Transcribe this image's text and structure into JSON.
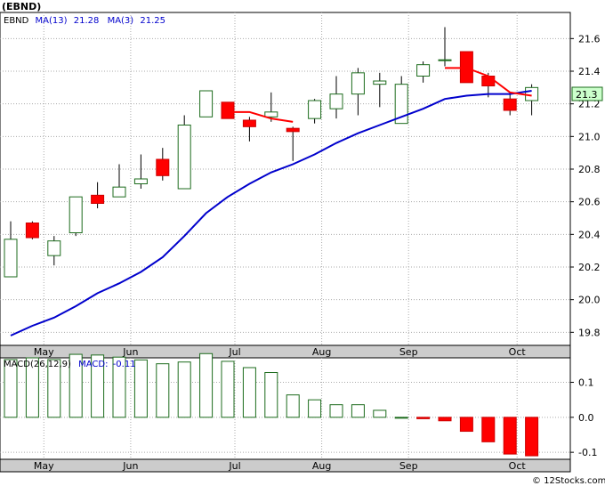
{
  "chart_data": [
    {
      "type": "candlestick",
      "title": "(EBND)",
      "legend": {
        "symbol": "EBND",
        "ma13_label": "MA(13)",
        "ma13_value": "21.28",
        "ma3_label": "MA(3)",
        "ma3_value": "21.25"
      },
      "last_price_label": "21.3",
      "ylim": [
        19.72,
        21.76
      ],
      "y_ticks": [
        "19.8",
        "20.0",
        "20.2",
        "20.4",
        "20.6",
        "20.8",
        "21.0",
        "21.2",
        "21.4",
        "21.6"
      ],
      "x_ticks": [
        "May",
        "Jun",
        "Jul",
        "Aug",
        "Sep",
        "Oct"
      ],
      "x_tick_weeks": [
        1.2,
        5.2,
        10,
        14,
        18,
        23
      ],
      "candles": [
        {
          "o": 20.14,
          "h": 20.48,
          "l": 20.14,
          "c": 20.37
        },
        {
          "o": 20.47,
          "h": 20.48,
          "l": 20.37,
          "c": 20.38
        },
        {
          "o": 20.27,
          "h": 20.39,
          "l": 20.21,
          "c": 20.36
        },
        {
          "o": 20.41,
          "h": 20.63,
          "l": 20.39,
          "c": 20.63
        },
        {
          "o": 20.64,
          "h": 20.72,
          "l": 20.56,
          "c": 20.59
        },
        {
          "o": 20.63,
          "h": 20.83,
          "l": 20.63,
          "c": 20.69
        },
        {
          "o": 20.71,
          "h": 20.89,
          "l": 20.68,
          "c": 20.74
        },
        {
          "o": 20.86,
          "h": 20.93,
          "l": 20.73,
          "c": 20.76
        },
        {
          "o": 20.68,
          "h": 21.13,
          "l": 20.68,
          "c": 21.07
        },
        {
          "o": 21.12,
          "h": 21.28,
          "l": 21.12,
          "c": 21.28
        },
        {
          "o": 21.21,
          "h": 21.21,
          "l": 21.11,
          "c": 21.11
        },
        {
          "o": 21.1,
          "h": 21.12,
          "l": 20.97,
          "c": 21.06
        },
        {
          "o": 21.12,
          "h": 21.27,
          "l": 21.09,
          "c": 21.15
        },
        {
          "o": 21.05,
          "h": 21.06,
          "l": 20.85,
          "c": 21.03
        },
        {
          "o": 21.11,
          "h": 21.23,
          "l": 21.08,
          "c": 21.22
        },
        {
          "o": 21.17,
          "h": 21.37,
          "l": 21.11,
          "c": 21.26
        },
        {
          "o": 21.26,
          "h": 21.42,
          "l": 21.13,
          "c": 21.39
        },
        {
          "o": 21.32,
          "h": 21.39,
          "l": 21.18,
          "c": 21.34
        },
        {
          "o": 21.08,
          "h": 21.37,
          "l": 21.08,
          "c": 21.32
        },
        {
          "o": 21.37,
          "h": 21.46,
          "l": 21.33,
          "c": 21.44
        },
        {
          "o": 21.47,
          "h": 21.67,
          "l": 21.43,
          "c": 21.47
        },
        {
          "o": 21.52,
          "h": 21.52,
          "l": 21.33,
          "c": 21.33
        },
        {
          "o": 21.37,
          "h": 21.39,
          "l": 21.24,
          "c": 21.31
        },
        {
          "o": 21.23,
          "h": 21.27,
          "l": 21.13,
          "c": 21.16
        },
        {
          "o": 21.22,
          "h": 21.32,
          "l": 21.13,
          "c": 21.3
        }
      ],
      "ma13": [
        19.78,
        19.84,
        19.89,
        19.96,
        20.04,
        20.1,
        20.17,
        20.26,
        20.39,
        20.53,
        20.63,
        20.71,
        20.78,
        20.83,
        20.89,
        20.96,
        21.02,
        21.07,
        21.12,
        21.17,
        21.23,
        21.25,
        21.26,
        21.26,
        21.28
      ],
      "ma3": [
        null,
        null,
        null,
        null,
        null,
        null,
        null,
        null,
        null,
        null,
        21.15,
        21.15,
        21.11,
        21.09,
        null,
        null,
        null,
        null,
        null,
        null,
        21.42,
        21.42,
        21.37,
        21.27,
        21.25
      ]
    },
    {
      "type": "bar",
      "title": "MACD(26,12,9)",
      "label": "MACD:",
      "value_label": "-0.11",
      "ylim": [
        -0.12,
        0.17
      ],
      "y_ticks": [
        "0.1",
        "0.0",
        "-0.1"
      ],
      "x_ticks": [
        "May",
        "Jun",
        "Jul",
        "Aug",
        "Sep",
        "Oct"
      ],
      "values": [
        0.165,
        0.17,
        0.165,
        0.18,
        0.178,
        0.172,
        0.164,
        0.153,
        0.158,
        0.182,
        0.16,
        0.142,
        0.128,
        0.064,
        0.05,
        0.036,
        0.036,
        0.02,
        0.0,
        -0.004,
        -0.01,
        -0.04,
        -0.07,
        -0.105,
        -0.11
      ]
    }
  ],
  "watermark": "© 12Stocks.com",
  "colors": {
    "up_fill": "#ffffff",
    "up_stroke": "#1c6b1c",
    "down_fill": "#ff0000",
    "ma13": "#0000cc",
    "ma3": "#ff0000",
    "label_bg": "#ccffcc",
    "axis_bg": "#cccccc"
  }
}
